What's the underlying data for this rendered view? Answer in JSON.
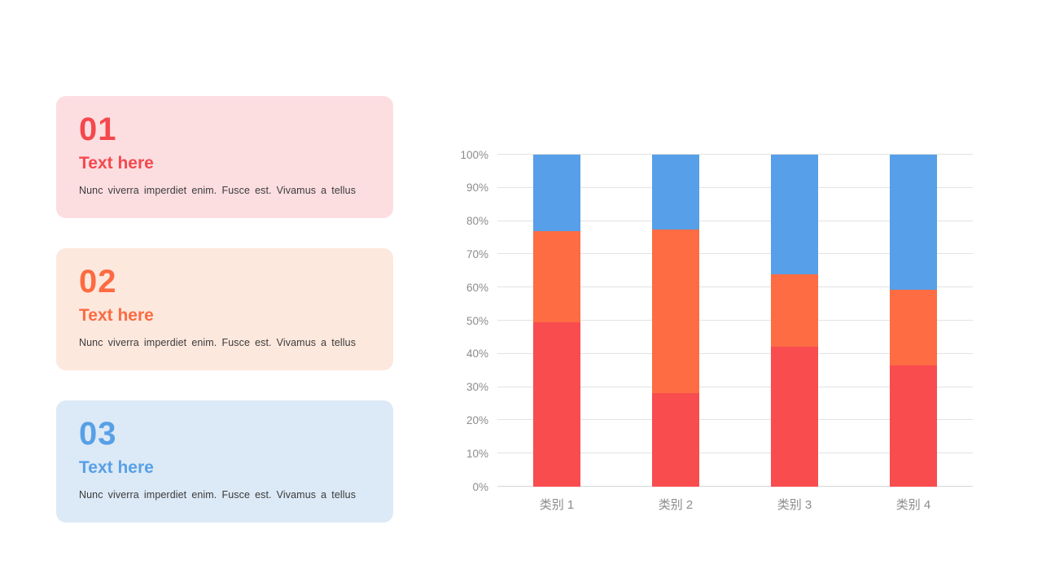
{
  "slide": {
    "background": "#ffffff"
  },
  "cards": [
    {
      "number": "01",
      "title": "Text here",
      "body": "Nunc viverra imperdiet enim. Fusce est. Vivamus a tellus",
      "accent": "#f5484d",
      "background": "#fcdee1"
    },
    {
      "number": "02",
      "title": "Text here",
      "body": "Nunc viverra imperdiet enim. Fusce est. Vivamus a tellus",
      "accent": "#fc6b41",
      "background": "#fde8de"
    },
    {
      "number": "03",
      "title": "Text here",
      "body": "Nunc viverra imperdiet enim. Fusce est. Vivamus a tellus",
      "accent": "#58a0e6",
      "background": "#dce9f6"
    }
  ],
  "chart_data": {
    "type": "bar",
    "variant": "100-percent-stacked-column",
    "title": "",
    "xlabel": "",
    "ylabel": "",
    "categories": [
      "类别 1",
      "类别 2",
      "类别 3",
      "类别 4"
    ],
    "series": [
      {
        "name": "red",
        "color": "#f84c4f",
        "values_pct": [
          49.4,
          28.1,
          42.2,
          36.6
        ]
      },
      {
        "name": "orange",
        "color": "#fe6c43",
        "values_pct": [
          27.6,
          49.4,
          21.7,
          22.8
        ]
      },
      {
        "name": "blue",
        "color": "#579fe8",
        "values_pct": [
          23.0,
          22.5,
          36.1,
          40.6
        ]
      }
    ],
    "stack_order_bottom_to_top": [
      "red",
      "orange",
      "blue"
    ],
    "y_ticks": [
      "0%",
      "10%",
      "20%",
      "30%",
      "40%",
      "50%",
      "60%",
      "70%",
      "80%",
      "90%",
      "100%"
    ],
    "ylim": [
      0,
      100
    ],
    "grid": true,
    "legend": "none",
    "axis_label_color": "#8c8c8c",
    "gridline_color": "#e3e3e3",
    "baseline_color": "#d7d7d7"
  }
}
